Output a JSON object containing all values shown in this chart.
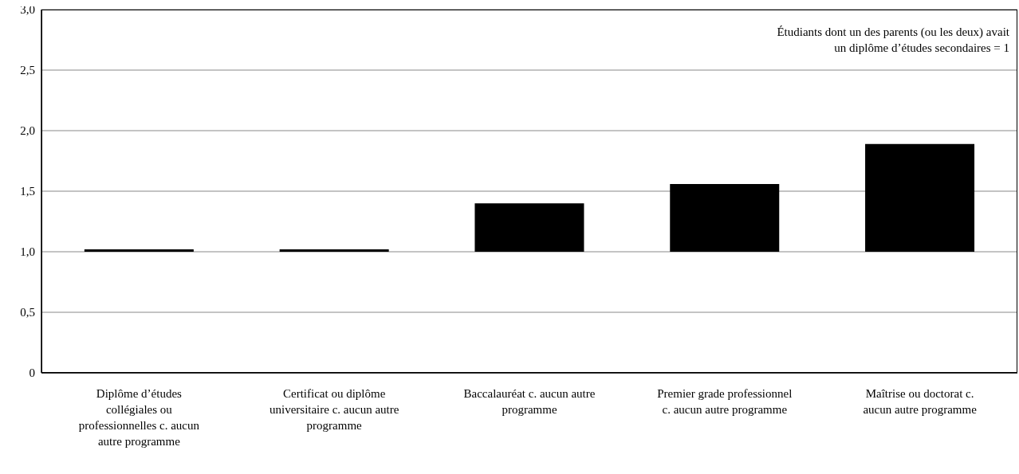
{
  "chart_data": {
    "type": "bar",
    "categories": [
      "Diplôme d’études collégiales ou professionnelles c. aucun autre programme",
      "Certificat ou diplôme universitaire c. aucun autre programme",
      "Baccalauréat c. aucun autre programme",
      "Premier grade professionnel c. aucun autre programme",
      "Maîtrise ou doctorat c. aucun autre programme"
    ],
    "base": [
      1,
      1,
      1,
      1,
      1
    ],
    "values": [
      0.02,
      0.02,
      0.4,
      0.56,
      0.89
    ],
    "color": "#000000",
    "ylim": [
      0,
      3
    ],
    "yticks": [
      0,
      {
        "value": 0.5,
        "label": "0,5"
      },
      {
        "value": 1,
        "label": "1,0"
      },
      {
        "value": 1.5,
        "label": "1,5"
      },
      {
        "value": 2,
        "label": "2,0"
      },
      {
        "value": 2.5,
        "label": "2,5"
      },
      {
        "value": 3,
        "label": "3,0"
      }
    ],
    "grid": "y",
    "annotations": [
      "Étudiants dont un des parents (ou les deux) avait un diplôme d’études secondaires = 1"
    ]
  }
}
